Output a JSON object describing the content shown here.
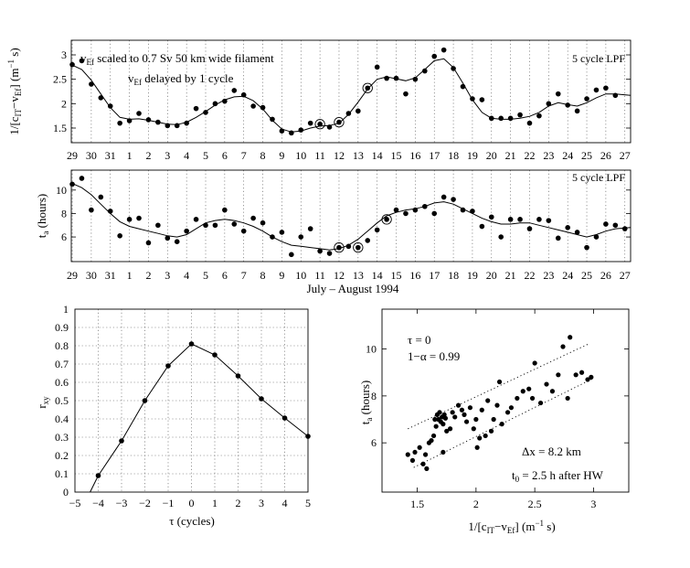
{
  "chart_data": [
    {
      "id": "top",
      "type": "line",
      "note_line1": "v",
      "note_line1_sub": "Ef",
      "note_line1_rest": " scaled to 0.7 Sv  50 km wide filament",
      "note_line2": "v",
      "note_line2_sub": "Ef",
      "note_line2_rest": " delayed by 1 cycle",
      "corner_label": "5 cycle LPF",
      "ylabel": "1/[c_IT - v_Ef] (m^-1 s)",
      "ylim": [
        1.2,
        3.3
      ],
      "xlim": [
        -0.1,
        58.6
      ],
      "yticks": [
        1.5,
        2,
        2.5,
        3
      ],
      "points": [
        [
          0,
          2.8
        ],
        [
          1,
          2.88
        ],
        [
          2,
          2.4
        ],
        [
          3,
          2.12
        ],
        [
          4,
          1.95
        ],
        [
          5,
          1.6
        ],
        [
          6,
          1.65
        ],
        [
          7,
          1.8
        ],
        [
          8,
          1.67
        ],
        [
          9,
          1.62
        ],
        [
          10,
          1.55
        ],
        [
          11,
          1.55
        ],
        [
          12,
          1.6
        ],
        [
          13,
          1.9
        ],
        [
          14,
          1.82
        ],
        [
          15,
          2.0
        ],
        [
          16,
          2.05
        ],
        [
          17,
          2.27
        ],
        [
          18,
          2.18
        ],
        [
          19,
          1.95
        ],
        [
          20,
          1.92
        ],
        [
          21,
          1.68
        ],
        [
          22,
          1.44
        ],
        [
          23,
          1.4
        ],
        [
          24,
          1.46
        ],
        [
          25,
          1.6
        ],
        [
          26,
          1.58
        ],
        [
          27,
          1.52
        ],
        [
          28,
          1.62
        ],
        [
          29,
          1.8
        ],
        [
          30,
          1.85
        ],
        [
          31,
          2.32
        ],
        [
          32,
          2.75
        ],
        [
          33,
          2.52
        ],
        [
          34,
          2.52
        ],
        [
          35,
          2.2
        ],
        [
          36,
          2.5
        ],
        [
          37,
          2.67
        ],
        [
          38,
          2.97
        ],
        [
          39,
          3.1
        ],
        [
          40,
          2.72
        ],
        [
          41,
          2.35
        ],
        [
          42,
          2.1
        ],
        [
          43,
          2.08
        ],
        [
          44,
          1.7
        ],
        [
          45,
          1.7
        ],
        [
          46,
          1.7
        ],
        [
          47,
          1.77
        ],
        [
          48,
          1.6
        ],
        [
          49,
          1.75
        ],
        [
          50,
          2.0
        ],
        [
          51,
          2.2
        ],
        [
          52,
          1.97
        ],
        [
          53,
          1.85
        ],
        [
          54,
          2.1
        ],
        [
          55,
          2.28
        ],
        [
          56,
          2.32
        ],
        [
          57,
          2.17
        ]
      ],
      "circled_x": [
        26,
        28,
        31
      ],
      "smooth": [
        [
          -0.1,
          2.8
        ],
        [
          1,
          2.7
        ],
        [
          2,
          2.48
        ],
        [
          3,
          2.2
        ],
        [
          4,
          1.92
        ],
        [
          5,
          1.72
        ],
        [
          6,
          1.68
        ],
        [
          7,
          1.69
        ],
        [
          8,
          1.66
        ],
        [
          9,
          1.62
        ],
        [
          10,
          1.58
        ],
        [
          11,
          1.57
        ],
        [
          12,
          1.62
        ],
        [
          13,
          1.72
        ],
        [
          14,
          1.84
        ],
        [
          15,
          1.97
        ],
        [
          16,
          2.08
        ],
        [
          17,
          2.14
        ],
        [
          18,
          2.15
        ],
        [
          19,
          2.06
        ],
        [
          20,
          1.89
        ],
        [
          21,
          1.66
        ],
        [
          22,
          1.48
        ],
        [
          23,
          1.42
        ],
        [
          24,
          1.44
        ],
        [
          25,
          1.5
        ],
        [
          26,
          1.54
        ],
        [
          27,
          1.55
        ],
        [
          28,
          1.6
        ],
        [
          29,
          1.78
        ],
        [
          30,
          2.03
        ],
        [
          31,
          2.3
        ],
        [
          32,
          2.5
        ],
        [
          33,
          2.55
        ],
        [
          34,
          2.51
        ],
        [
          35,
          2.47
        ],
        [
          36,
          2.53
        ],
        [
          37,
          2.7
        ],
        [
          38,
          2.88
        ],
        [
          39,
          2.92
        ],
        [
          40,
          2.74
        ],
        [
          41,
          2.42
        ],
        [
          42,
          2.08
        ],
        [
          43,
          1.82
        ],
        [
          44,
          1.7
        ],
        [
          45,
          1.68
        ],
        [
          46,
          1.68
        ],
        [
          47,
          1.7
        ],
        [
          48,
          1.74
        ],
        [
          49,
          1.82
        ],
        [
          50,
          1.95
        ],
        [
          51,
          2.02
        ],
        [
          52,
          1.98
        ],
        [
          53,
          1.95
        ],
        [
          54,
          2.02
        ],
        [
          55,
          2.12
        ],
        [
          56,
          2.2
        ],
        [
          57,
          2.2
        ],
        [
          58.6,
          2.17
        ]
      ]
    },
    {
      "id": "mid",
      "type": "line",
      "corner_label": "5 cycle LPF",
      "ylabel": "t_a (hours)",
      "ylim": [
        3.9,
        11.7
      ],
      "xlim": [
        -0.1,
        58.6
      ],
      "yticks": [
        6,
        8,
        10
      ],
      "points": [
        [
          0,
          10.5
        ],
        [
          1,
          11.0
        ],
        [
          2,
          8.3
        ],
        [
          3,
          9.4
        ],
        [
          4,
          8.2
        ],
        [
          5,
          6.1
        ],
        [
          6,
          7.5
        ],
        [
          7,
          7.6
        ],
        [
          8,
          5.5
        ],
        [
          9,
          7.0
        ],
        [
          10,
          5.9
        ],
        [
          11,
          5.6
        ],
        [
          12,
          6.5
        ],
        [
          13,
          7.5
        ],
        [
          14,
          7.0
        ],
        [
          15,
          7.0
        ],
        [
          16,
          8.3
        ],
        [
          17,
          7.1
        ],
        [
          18,
          6.5
        ],
        [
          19,
          7.6
        ],
        [
          20,
          7.2
        ],
        [
          21,
          6.0
        ],
        [
          22,
          6.4
        ],
        [
          23,
          4.5
        ],
        [
          24,
          6.0
        ],
        [
          25,
          6.7
        ],
        [
          26,
          4.8
        ],
        [
          27,
          4.6
        ],
        [
          28,
          5.1
        ],
        [
          29,
          5.2
        ],
        [
          30,
          5.1
        ],
        [
          31,
          5.7
        ],
        [
          32,
          6.6
        ],
        [
          33,
          7.5
        ],
        [
          34,
          8.3
        ],
        [
          35,
          8.0
        ],
        [
          36,
          8.3
        ],
        [
          37,
          8.6
        ],
        [
          38,
          8.0
        ],
        [
          39,
          9.4
        ],
        [
          40,
          9.2
        ],
        [
          41,
          8.3
        ],
        [
          42,
          8.2
        ],
        [
          43,
          6.9
        ],
        [
          44,
          7.7
        ],
        [
          45,
          6.0
        ],
        [
          46,
          7.5
        ],
        [
          47,
          7.5
        ],
        [
          48,
          6.7
        ],
        [
          49,
          7.5
        ],
        [
          50,
          7.4
        ],
        [
          51,
          5.9
        ],
        [
          52,
          6.8
        ],
        [
          53,
          6.4
        ],
        [
          54,
          5.1
        ],
        [
          55,
          6.0
        ],
        [
          56,
          7.1
        ],
        [
          57,
          7.0
        ],
        [
          58,
          6.7
        ]
      ],
      "circled_x": [
        28,
        30,
        33
      ],
      "smooth": [
        [
          -0.1,
          10.6
        ],
        [
          1,
          10.2
        ],
        [
          2,
          9.6
        ],
        [
          3,
          8.8
        ],
        [
          4,
          8.0
        ],
        [
          5,
          7.3
        ],
        [
          6,
          6.9
        ],
        [
          7,
          6.7
        ],
        [
          8,
          6.5
        ],
        [
          9,
          6.3
        ],
        [
          10,
          6.1
        ],
        [
          11,
          6.0
        ],
        [
          12,
          6.2
        ],
        [
          13,
          6.7
        ],
        [
          14,
          7.2
        ],
        [
          15,
          7.4
        ],
        [
          16,
          7.5
        ],
        [
          17,
          7.4
        ],
        [
          18,
          7.2
        ],
        [
          19,
          6.9
        ],
        [
          20,
          6.5
        ],
        [
          21,
          6.0
        ],
        [
          22,
          5.6
        ],
        [
          23,
          5.3
        ],
        [
          24,
          5.2
        ],
        [
          25,
          5.1
        ],
        [
          26,
          5.0
        ],
        [
          27,
          4.9
        ],
        [
          28,
          5.0
        ],
        [
          29,
          5.3
        ],
        [
          30,
          5.8
        ],
        [
          31,
          6.5
        ],
        [
          32,
          7.2
        ],
        [
          33,
          7.8
        ],
        [
          34,
          8.1
        ],
        [
          35,
          8.3
        ],
        [
          36,
          8.4
        ],
        [
          37,
          8.6
        ],
        [
          38,
          8.9
        ],
        [
          39,
          9.0
        ],
        [
          40,
          8.8
        ],
        [
          41,
          8.4
        ],
        [
          42,
          8.0
        ],
        [
          43,
          7.6
        ],
        [
          44,
          7.3
        ],
        [
          45,
          7.1
        ],
        [
          46,
          7.1
        ],
        [
          47,
          7.2
        ],
        [
          48,
          7.2
        ],
        [
          49,
          7.0
        ],
        [
          50,
          6.8
        ],
        [
          51,
          6.6
        ],
        [
          52,
          6.4
        ],
        [
          53,
          6.2
        ],
        [
          54,
          6.0
        ],
        [
          55,
          6.2
        ],
        [
          56,
          6.5
        ],
        [
          57,
          6.7
        ],
        [
          58.6,
          6.8
        ]
      ],
      "date_ticks": [
        "29",
        "30",
        "31",
        "1",
        "2",
        "3",
        "4",
        "5",
        "6",
        "7",
        "8",
        "9",
        "10",
        "11",
        "12",
        "13",
        "14",
        "15",
        "16",
        "17",
        "18",
        "19",
        "20",
        "21",
        "22",
        "23",
        "24",
        "25",
        "26",
        "27"
      ],
      "xlabel": "July – August 1994"
    },
    {
      "id": "bottom_left",
      "type": "line",
      "xlabel": "τ (cycles)",
      "ylabel": "r_xy",
      "xlim": [
        -5,
        5
      ],
      "ylim": [
        0,
        1
      ],
      "xticks": [
        -5,
        -4,
        -3,
        -2,
        -1,
        0,
        1,
        2,
        3,
        4,
        5
      ],
      "yticks": [
        0,
        0.1,
        0.2,
        0.3,
        0.4,
        0.5,
        0.6,
        0.7,
        0.8,
        0.9,
        1
      ],
      "x": [
        -4,
        -3,
        -2,
        -1,
        0,
        1,
        2,
        3,
        4,
        5
      ],
      "y": [
        0.09,
        0.28,
        0.5,
        0.69,
        0.81,
        0.75,
        0.635,
        0.51,
        0.405,
        0.305
      ],
      "line_start": [
        -4.35,
        0.0
      ],
      "grid": true
    },
    {
      "id": "bottom_right",
      "type": "scatter",
      "xlabel": "1/[c_IT - v_Ef] (m^-1 s)",
      "ylabel": "t_a (hours)",
      "xlim": [
        1.2,
        3.3
      ],
      "ylim": [
        3.9,
        11.7
      ],
      "xticks": [
        1.5,
        2,
        2.5,
        3
      ],
      "yticks": [
        6,
        8,
        10
      ],
      "ann_tau": "τ = 0",
      "ann_alpha": "1−α = 0.99",
      "ann_dx": "Δx = 8.2 km",
      "ann_t0": "t",
      "ann_t0_sub": "0",
      "ann_t0_rest": " = 2.5 h after HW",
      "upper_line": [
        [
          1.42,
          6.6
        ],
        [
          2.95,
          10.2
        ]
      ],
      "lower_line": [
        [
          1.47,
          4.95
        ],
        [
          3.0,
          8.75
        ]
      ],
      "points": [
        [
          1.42,
          5.5
        ],
        [
          1.46,
          5.25
        ],
        [
          1.48,
          5.6
        ],
        [
          1.52,
          5.8
        ],
        [
          1.55,
          5.1
        ],
        [
          1.57,
          5.5
        ],
        [
          1.58,
          4.9
        ],
        [
          1.6,
          6.0
        ],
        [
          1.62,
          6.1
        ],
        [
          1.64,
          6.3
        ],
        [
          1.65,
          7.0
        ],
        [
          1.66,
          6.7
        ],
        [
          1.67,
          7.2
        ],
        [
          1.68,
          7.0
        ],
        [
          1.69,
          7.3
        ],
        [
          1.7,
          6.9
        ],
        [
          1.71,
          7.1
        ],
        [
          1.72,
          6.8
        ],
        [
          1.73,
          7.2
        ],
        [
          1.74,
          7.05
        ],
        [
          1.75,
          6.5
        ],
        [
          1.72,
          5.6
        ],
        [
          1.78,
          6.6
        ],
        [
          1.8,
          7.3
        ],
        [
          1.82,
          7.1
        ],
        [
          1.85,
          7.6
        ],
        [
          1.88,
          7.4
        ],
        [
          1.9,
          7.2
        ],
        [
          1.92,
          6.9
        ],
        [
          1.95,
          7.5
        ],
        [
          1.98,
          6.6
        ],
        [
          2.0,
          7.0
        ],
        [
          2.01,
          5.8
        ],
        [
          2.03,
          6.2
        ],
        [
          2.05,
          7.4
        ],
        [
          2.08,
          6.3
        ],
        [
          2.1,
          7.8
        ],
        [
          2.13,
          6.5
        ],
        [
          2.15,
          7.0
        ],
        [
          2.18,
          7.6
        ],
        [
          2.2,
          8.6
        ],
        [
          2.22,
          6.8
        ],
        [
          2.27,
          7.3
        ],
        [
          2.3,
          7.5
        ],
        [
          2.35,
          7.9
        ],
        [
          2.4,
          8.2
        ],
        [
          2.45,
          8.3
        ],
        [
          2.48,
          7.9
        ],
        [
          2.5,
          9.4
        ],
        [
          2.55,
          7.7
        ],
        [
          2.6,
          8.5
        ],
        [
          2.65,
          8.2
        ],
        [
          2.7,
          8.9
        ],
        [
          2.74,
          10.1
        ],
        [
          2.78,
          7.9
        ],
        [
          2.8,
          10.5
        ],
        [
          2.85,
          8.9
        ],
        [
          2.9,
          9.0
        ],
        [
          2.95,
          8.7
        ],
        [
          2.98,
          8.8
        ]
      ]
    }
  ]
}
